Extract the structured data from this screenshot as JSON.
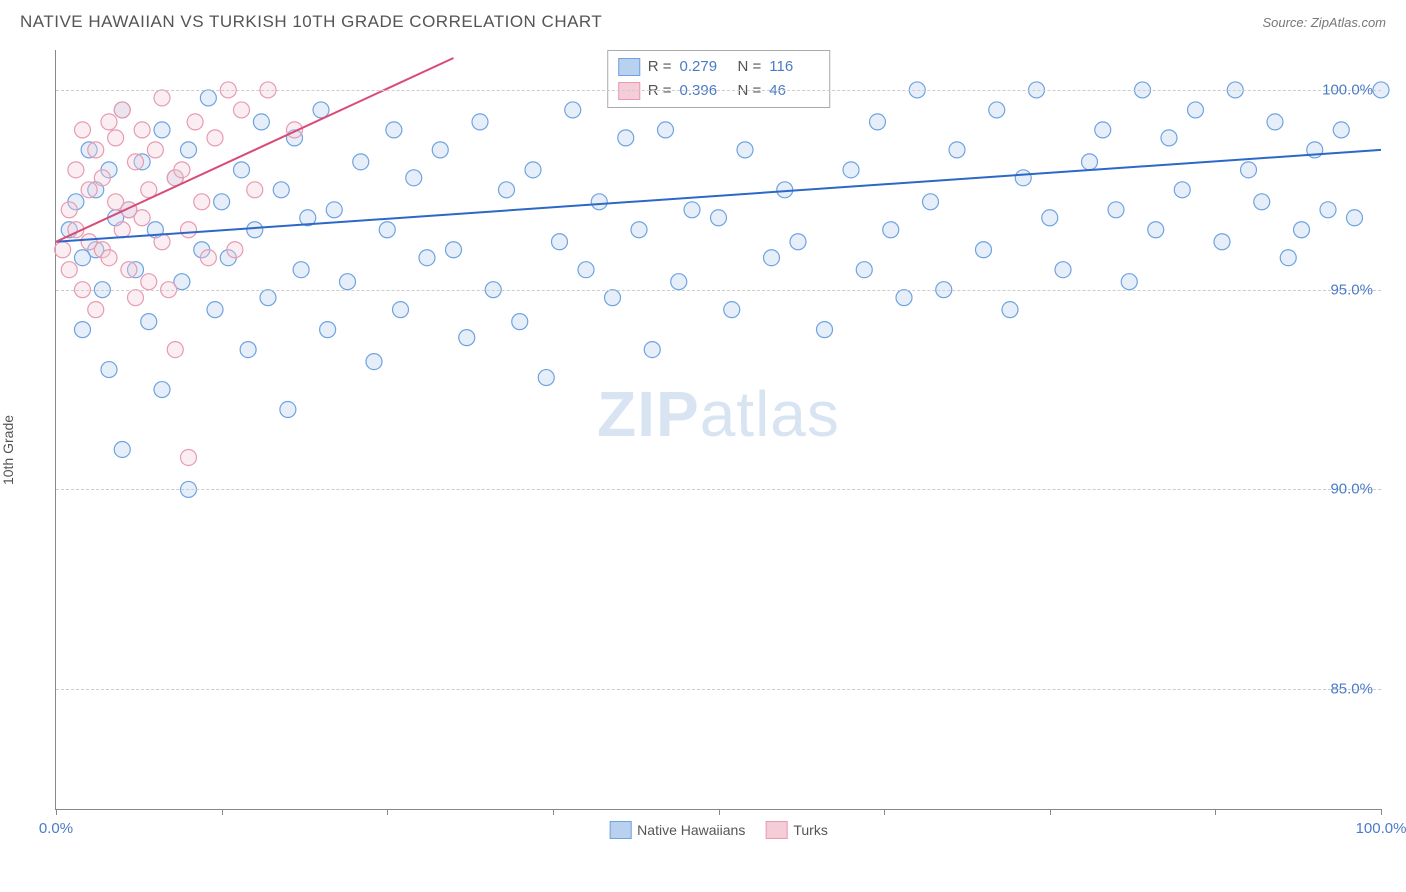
{
  "header": {
    "title": "NATIVE HAWAIIAN VS TURKISH 10TH GRADE CORRELATION CHART",
    "source": "Source: ZipAtlas.com"
  },
  "watermark": {
    "zip": "ZIP",
    "atlas": "atlas"
  },
  "chart": {
    "type": "scatter",
    "ylabel": "10th Grade",
    "xlim": [
      0,
      100
    ],
    "ylim": [
      82,
      101
    ],
    "yticks": [
      85.0,
      90.0,
      95.0,
      100.0
    ],
    "ytick_labels": [
      "85.0%",
      "90.0%",
      "95.0%",
      "100.0%"
    ],
    "xticks": [
      0,
      12.5,
      25,
      37.5,
      50,
      62.5,
      75,
      87.5,
      100
    ],
    "xtick_labels": {
      "0": "0.0%",
      "100": "100.0%"
    },
    "background_color": "#ffffff",
    "grid_color": "#cccccc",
    "axis_color": "#888888",
    "tick_label_color": "#4a7bc8",
    "marker_radius": 8,
    "marker_stroke_width": 1.2,
    "marker_fill_opacity": 0.35,
    "series": [
      {
        "key": "hawaiians",
        "label": "Native Hawaiians",
        "color": "#6fa3e0",
        "fill": "#b8d1ee",
        "r": 0.279,
        "n": 116,
        "regression": {
          "x1": 0,
          "y1": 96.2,
          "x2": 100,
          "y2": 98.5,
          "color": "#2b68c8",
          "width": 2
        },
        "points": [
          [
            1,
            96.5
          ],
          [
            1.5,
            97.2
          ],
          [
            2,
            95.8
          ],
          [
            2,
            94.0
          ],
          [
            2.5,
            98.5
          ],
          [
            3,
            96.0
          ],
          [
            3,
            97.5
          ],
          [
            3.5,
            95.0
          ],
          [
            4,
            98.0
          ],
          [
            4,
            93.0
          ],
          [
            4.5,
            96.8
          ],
          [
            5,
            99.5
          ],
          [
            5,
            91.0
          ],
          [
            5.5,
            97.0
          ],
          [
            6,
            95.5
          ],
          [
            6.5,
            98.2
          ],
          [
            7,
            94.2
          ],
          [
            7.5,
            96.5
          ],
          [
            8,
            99.0
          ],
          [
            8,
            92.5
          ],
          [
            9,
            97.8
          ],
          [
            9.5,
            95.2
          ],
          [
            10,
            98.5
          ],
          [
            10,
            90.0
          ],
          [
            11,
            96.0
          ],
          [
            11.5,
            99.8
          ],
          [
            12,
            94.5
          ],
          [
            12.5,
            97.2
          ],
          [
            13,
            95.8
          ],
          [
            14,
            98.0
          ],
          [
            14.5,
            93.5
          ],
          [
            15,
            96.5
          ],
          [
            15.5,
            99.2
          ],
          [
            16,
            94.8
          ],
          [
            17,
            97.5
          ],
          [
            17.5,
            92.0
          ],
          [
            18,
            98.8
          ],
          [
            18.5,
            95.5
          ],
          [
            19,
            96.8
          ],
          [
            20,
            99.5
          ],
          [
            20.5,
            94.0
          ],
          [
            21,
            97.0
          ],
          [
            22,
            95.2
          ],
          [
            23,
            98.2
          ],
          [
            24,
            93.2
          ],
          [
            25,
            96.5
          ],
          [
            25.5,
            99.0
          ],
          [
            26,
            94.5
          ],
          [
            27,
            97.8
          ],
          [
            28,
            95.8
          ],
          [
            29,
            98.5
          ],
          [
            30,
            96.0
          ],
          [
            31,
            93.8
          ],
          [
            32,
            99.2
          ],
          [
            33,
            95.0
          ],
          [
            34,
            97.5
          ],
          [
            35,
            94.2
          ],
          [
            36,
            98.0
          ],
          [
            37,
            92.8
          ],
          [
            38,
            96.2
          ],
          [
            39,
            99.5
          ],
          [
            40,
            95.5
          ],
          [
            41,
            97.2
          ],
          [
            42,
            94.8
          ],
          [
            43,
            98.8
          ],
          [
            44,
            96.5
          ],
          [
            45,
            93.5
          ],
          [
            46,
            99.0
          ],
          [
            47,
            95.2
          ],
          [
            48,
            97.0
          ],
          [
            50,
            96.8
          ],
          [
            51,
            94.5
          ],
          [
            52,
            98.5
          ],
          [
            53,
            99.8
          ],
          [
            54,
            95.8
          ],
          [
            55,
            97.5
          ],
          [
            56,
            96.2
          ],
          [
            57,
            100.0
          ],
          [
            58,
            94.0
          ],
          [
            60,
            98.0
          ],
          [
            61,
            95.5
          ],
          [
            62,
            99.2
          ],
          [
            63,
            96.5
          ],
          [
            64,
            94.8
          ],
          [
            65,
            100.0
          ],
          [
            66,
            97.2
          ],
          [
            67,
            95.0
          ],
          [
            68,
            98.5
          ],
          [
            70,
            96.0
          ],
          [
            71,
            99.5
          ],
          [
            72,
            94.5
          ],
          [
            73,
            97.8
          ],
          [
            74,
            100.0
          ],
          [
            75,
            96.8
          ],
          [
            76,
            95.5
          ],
          [
            78,
            98.2
          ],
          [
            79,
            99.0
          ],
          [
            80,
            97.0
          ],
          [
            81,
            95.2
          ],
          [
            82,
            100.0
          ],
          [
            83,
            96.5
          ],
          [
            84,
            98.8
          ],
          [
            85,
            97.5
          ],
          [
            86,
            99.5
          ],
          [
            88,
            96.2
          ],
          [
            89,
            100.0
          ],
          [
            90,
            98.0
          ],
          [
            91,
            97.2
          ],
          [
            92,
            99.2
          ],
          [
            93,
            95.8
          ],
          [
            94,
            96.5
          ],
          [
            95,
            98.5
          ],
          [
            96,
            97.0
          ],
          [
            97,
            99.0
          ],
          [
            98,
            96.8
          ],
          [
            100,
            100.0
          ]
        ]
      },
      {
        "key": "turks",
        "label": "Turks",
        "color": "#e89bb0",
        "fill": "#f4cdd9",
        "r": 0.396,
        "n": 46,
        "regression": {
          "x1": 0,
          "y1": 96.2,
          "x2": 30,
          "y2": 100.8,
          "color": "#d94a76",
          "width": 2
        },
        "points": [
          [
            0.5,
            96.0
          ],
          [
            1,
            97.0
          ],
          [
            1,
            95.5
          ],
          [
            1.5,
            98.0
          ],
          [
            1.5,
            96.5
          ],
          [
            2,
            99.0
          ],
          [
            2,
            95.0
          ],
          [
            2.5,
            97.5
          ],
          [
            2.5,
            96.2
          ],
          [
            3,
            98.5
          ],
          [
            3,
            94.5
          ],
          [
            3.5,
            97.8
          ],
          [
            3.5,
            96.0
          ],
          [
            4,
            99.2
          ],
          [
            4,
            95.8
          ],
          [
            4.5,
            97.2
          ],
          [
            4.5,
            98.8
          ],
          [
            5,
            96.5
          ],
          [
            5,
            99.5
          ],
          [
            5.5,
            95.5
          ],
          [
            5.5,
            97.0
          ],
          [
            6,
            98.2
          ],
          [
            6,
            94.8
          ],
          [
            6.5,
            96.8
          ],
          [
            6.5,
            99.0
          ],
          [
            7,
            95.2
          ],
          [
            7,
            97.5
          ],
          [
            7.5,
            98.5
          ],
          [
            8,
            96.2
          ],
          [
            8,
            99.8
          ],
          [
            8.5,
            95.0
          ],
          [
            9,
            97.8
          ],
          [
            9,
            93.5
          ],
          [
            9.5,
            98.0
          ],
          [
            10,
            96.5
          ],
          [
            10,
            90.8
          ],
          [
            10.5,
            99.2
          ],
          [
            11,
            97.2
          ],
          [
            11.5,
            95.8
          ],
          [
            12,
            98.8
          ],
          [
            13,
            100.0
          ],
          [
            13.5,
            96.0
          ],
          [
            14,
            99.5
          ],
          [
            15,
            97.5
          ],
          [
            16,
            100.0
          ],
          [
            18,
            99.0
          ]
        ]
      }
    ],
    "legend_top": {
      "r_label": "R =",
      "n_label": "N ="
    },
    "legend_bottom_labels": [
      "Native Hawaiians",
      "Turks"
    ]
  }
}
